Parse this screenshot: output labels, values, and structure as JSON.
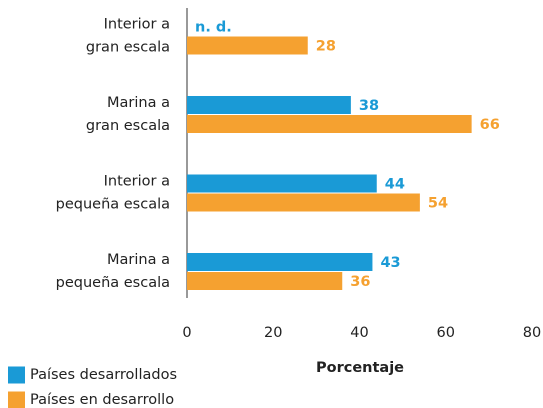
{
  "chart_data": {
    "type": "hbar",
    "categories": [
      "Interior a\ngran escala",
      "Marina a\ngran escala",
      "Interior a\npequeña escala",
      "Marina a\npequeña escala"
    ],
    "series": [
      {
        "name": "Países desarrollados",
        "color": "#1a9ad6",
        "values": [
          null,
          38,
          44,
          43
        ],
        "value_labels": [
          "n. d.",
          "38",
          "44",
          "43"
        ]
      },
      {
        "name": "Países en desarrollo",
        "color": "#f5a130",
        "values": [
          28,
          66,
          54,
          36
        ]
      }
    ],
    "xlabel": "Porcentaje",
    "xlim": [
      0,
      80
    ],
    "xticks": [
      0,
      20,
      40,
      60,
      80
    ],
    "grid": false,
    "legend": "bottom-left"
  }
}
